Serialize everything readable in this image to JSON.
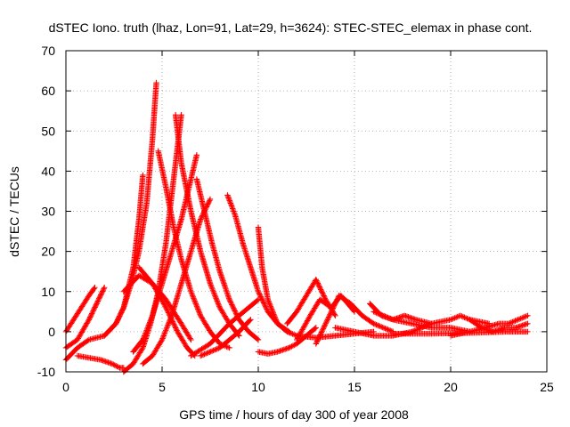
{
  "chart_data": {
    "type": "scatter",
    "title": "dSTEC Iono. truth (lhaz, Lon=91, Lat=29, h=3624): STEC-STEC_elemax in phase cont.",
    "xlabel": "GPS time / hours of day 300 of year 2008",
    "ylabel": "dSTEC  / TECUs",
    "xlim": [
      0,
      25
    ],
    "ylim": [
      -10,
      70
    ],
    "xticks": [
      0,
      5,
      10,
      15,
      20,
      25
    ],
    "yticks": [
      -10,
      0,
      10,
      20,
      30,
      40,
      50,
      60,
      70
    ],
    "grid": true,
    "marker": "plus",
    "color": "#ff0000",
    "series": [
      {
        "x": [
          0.0,
          0.4,
          0.8,
          1.2,
          1.5
        ],
        "y": [
          0,
          3,
          6,
          9,
          11
        ]
      },
      {
        "x": [
          0.0,
          0.6,
          1.2,
          1.6,
          2.0
        ],
        "y": [
          -4,
          -2,
          3,
          7,
          11
        ]
      },
      {
        "x": [
          0.0,
          0.6,
          1.2,
          2.0,
          2.6,
          3.0,
          3.5,
          3.8,
          4.0
        ],
        "y": [
          -7,
          -4,
          -2,
          -1,
          2,
          6,
          16,
          28,
          39
        ]
      },
      {
        "x": [
          0.6,
          1.2,
          1.8,
          2.4,
          2.8,
          3.0
        ],
        "y": [
          -6,
          -6.5,
          -7,
          -8,
          -9,
          -9
        ]
      },
      {
        "x": [
          2.0,
          2.6,
          3.0,
          3.4,
          3.8,
          4.2,
          4.5,
          4.7
        ],
        "y": [
          -1,
          2,
          6,
          12,
          20,
          32,
          48,
          62
        ]
      },
      {
        "x": [
          3.0,
          3.5,
          4.0,
          4.4,
          4.8,
          5.2,
          5.6,
          6.0
        ],
        "y": [
          -10,
          -8,
          -4,
          2,
          10,
          22,
          38,
          54
        ]
      },
      {
        "x": [
          3.5,
          4.0,
          4.5,
          5.0,
          5.5,
          6.0,
          6.4,
          6.8
        ],
        "y": [
          -5,
          -2,
          4,
          12,
          20,
          28,
          36,
          44
        ]
      },
      {
        "x": [
          4.0,
          4.5,
          5.0,
          5.5,
          6.0,
          6.5,
          7.0,
          7.5
        ],
        "y": [
          -8,
          -6,
          -2,
          4,
          12,
          20,
          28,
          33
        ]
      },
      {
        "x": [
          4.8,
          5.2,
          5.6,
          6.0,
          6.5,
          7.0,
          7.5,
          8.0,
          8.5
        ],
        "y": [
          45,
          36,
          26,
          18,
          10,
          4,
          0,
          -3,
          -4
        ]
      },
      {
        "x": [
          5.7,
          6.0,
          6.5,
          7.0,
          7.5,
          8.0,
          8.5,
          9.0
        ],
        "y": [
          54,
          42,
          30,
          20,
          12,
          6,
          2,
          -1
        ]
      },
      {
        "x": [
          6.8,
          7.2,
          7.6,
          8.0,
          8.5,
          9.0,
          9.5,
          10.0
        ],
        "y": [
          38,
          30,
          22,
          15,
          8,
          3,
          0,
          -2
        ]
      },
      {
        "x": [
          8.4,
          8.8,
          9.2,
          9.6,
          10.0,
          10.5,
          11.0,
          11.6
        ],
        "y": [
          34,
          29,
          22,
          16,
          10,
          5,
          2,
          0
        ]
      },
      {
        "x": [
          10.0,
          10.2,
          10.5,
          11.0,
          11.5,
          12.0
        ],
        "y": [
          26,
          16,
          8,
          2,
          0,
          -1
        ]
      },
      {
        "x": [
          3.8,
          4.5,
          5.2,
          5.8,
          6.3,
          6.7
        ],
        "y": [
          16,
          12,
          6,
          0,
          -4,
          -6
        ]
      },
      {
        "x": [
          3.0,
          3.8,
          4.5,
          5.2,
          6.0,
          6.5
        ],
        "y": [
          10,
          14,
          12,
          8,
          2,
          -2
        ]
      },
      {
        "x": [
          6.5,
          7.5,
          8.5,
          9.5,
          10.0
        ],
        "y": [
          -6,
          -3,
          2,
          6,
          8
        ]
      },
      {
        "x": [
          7.0,
          8.0,
          9.0,
          9.6
        ],
        "y": [
          -6,
          -4,
          0,
          3
        ]
      },
      {
        "x": [
          10.0,
          10.5,
          11.0,
          11.6,
          12.0,
          12.5,
          13.0
        ],
        "y": [
          -5,
          -5.5,
          -5,
          -4,
          -3,
          -1,
          1
        ]
      },
      {
        "x": [
          11.5,
          12.0,
          12.5,
          13.0,
          13.5,
          14.0
        ],
        "y": [
          2,
          5,
          9,
          13,
          8,
          4
        ]
      },
      {
        "x": [
          12.0,
          12.7,
          13.2,
          13.8,
          14.3,
          15.0
        ],
        "y": [
          -2,
          4,
          8,
          6,
          9,
          5
        ]
      },
      {
        "x": [
          13.0,
          13.6,
          14.2,
          14.8,
          15.4,
          16.0,
          17.0
        ],
        "y": [
          -3,
          3,
          9,
          7,
          4,
          2,
          0
        ]
      },
      {
        "x": [
          15.8,
          16.4,
          17.0,
          17.6,
          18.2,
          19.0
        ],
        "y": [
          7,
          4,
          3,
          4,
          3,
          2
        ]
      },
      {
        "x": [
          16.0,
          17.0,
          18.0,
          19.0,
          20.0,
          21.0
        ],
        "y": [
          5,
          3,
          2,
          1,
          1,
          0
        ]
      },
      {
        "x": [
          18.0,
          19.0,
          20.0,
          20.5,
          21.0,
          22.0
        ],
        "y": [
          0,
          2,
          3,
          4,
          3,
          2
        ]
      },
      {
        "x": [
          20.0,
          21.0,
          21.8,
          22.5,
          23.0,
          23.5,
          24.0
        ],
        "y": [
          -1,
          0,
          1,
          2,
          2,
          3,
          4
        ]
      },
      {
        "x": [
          21.0,
          21.6,
          22.2,
          22.8,
          23.4,
          24.0
        ],
        "y": [
          3,
          1,
          0,
          1,
          1,
          2
        ]
      },
      {
        "x": [
          17.0,
          19.0,
          21.0,
          23.0,
          24.0
        ],
        "y": [
          -0.5,
          -0.5,
          -0.3,
          0,
          0
        ]
      },
      {
        "x": [
          12.0,
          13.0,
          14.0,
          15.0,
          16.0
        ],
        "y": [
          -1,
          -1.5,
          -1,
          -0.5,
          0
        ]
      },
      {
        "x": [
          14.0,
          15.0,
          16.0,
          17.0,
          18.0
        ],
        "y": [
          1,
          0,
          -1,
          -1,
          0
        ]
      }
    ]
  }
}
